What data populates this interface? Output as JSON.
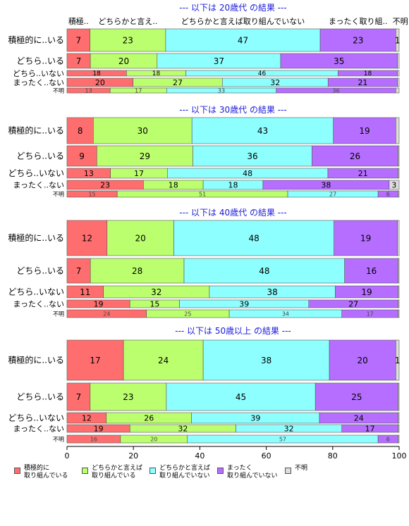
{
  "colors": [
    "#FF6E6E",
    "#BBFF6E",
    "#8EFFFF",
    "#B56EFF",
    "#DDDDDD"
  ],
  "legend": [
    "積極的に\n取り組んでいる",
    "どちらかと言えば\n取り組んでいる",
    "どちらかと言えば\n取り組んでいない",
    "まったく\n取り組んでいない",
    "不明"
  ],
  "header_labels": [
    "積極..",
    "どちらかと言え..",
    "どちらかと言えば取り組んでいない",
    "まったく取り組..",
    "不明"
  ],
  "chart_data": {
    "type": "bar",
    "orientation": "horizontal",
    "stacked": true,
    "xlim": [
      0,
      100
    ],
    "x_ticks": [
      "0",
      "20",
      "40",
      "60",
      "80",
      "100"
    ],
    "series_names": [
      "積極的に取り組んでいる",
      "どちらかと言えば取り組んでいる",
      "どちらかと言えば取り組んでいない",
      "まったく取り組んでいない",
      "不明"
    ],
    "panels": [
      {
        "title": "--- 以下は 20歳代 の結果 ---",
        "rows": [
          {
            "label": "積極的に..いる",
            "values": [
              7,
              23,
              47,
              23,
              1
            ],
            "labels": [
              "7",
              "23",
              "47",
              "23",
              "1"
            ]
          },
          {
            "label": "どちら..いる",
            "values": [
              7,
              20,
              37,
              35,
              0.5
            ],
            "labels": [
              "7",
              "20",
              "37",
              "35",
              ""
            ]
          },
          {
            "label": "どちら..いない",
            "values": [
              18,
              18,
              46,
              18,
              0.5
            ],
            "labels": [
              "18",
              "18",
              "46",
              "18",
              ""
            ]
          },
          {
            "label": "まったく..ない",
            "values": [
              20,
              27,
              32,
              21,
              0.5
            ],
            "labels": [
              "20",
              "27",
              "32",
              "21",
              ""
            ]
          },
          {
            "label": "不明",
            "values": [
              13,
              17,
              33,
              36,
              1
            ],
            "labels": [
              "13",
              "17",
              "33",
              "36",
              ""
            ]
          }
        ]
      },
      {
        "title": "--- 以下は 30歳代 の結果 ---",
        "rows": [
          {
            "label": "積極的に..いる",
            "values": [
              8,
              30,
              43,
              19,
              1
            ],
            "labels": [
              "8",
              "30",
              "43",
              "19",
              ""
            ]
          },
          {
            "label": "どちら..いる",
            "values": [
              9,
              29,
              36,
              26,
              0.3
            ],
            "labels": [
              "9",
              "29",
              "36",
              "26",
              ""
            ]
          },
          {
            "label": "どちら..いない",
            "values": [
              13,
              17,
              48,
              21,
              0.3
            ],
            "labels": [
              "13",
              "17",
              "48",
              "21",
              ""
            ]
          },
          {
            "label": "まったく..ない",
            "values": [
              23,
              18,
              18,
              38,
              3
            ],
            "labels": [
              "23",
              "18",
              "18",
              "38",
              "3"
            ]
          },
          {
            "label": "不明",
            "values": [
              15,
              51,
              27,
              6,
              0.3
            ],
            "labels": [
              "15",
              "51",
              "27",
              "6",
              ""
            ]
          }
        ]
      },
      {
        "title": "--- 以下は 40歳代 の結果 ---",
        "rows": [
          {
            "label": "積極的に..いる",
            "values": [
              12,
              20,
              48,
              19,
              0.5
            ],
            "labels": [
              "12",
              "20",
              "48",
              "19",
              ""
            ]
          },
          {
            "label": "どちら..いる",
            "values": [
              7,
              28,
              48,
              16,
              0.3
            ],
            "labels": [
              "7",
              "28",
              "48",
              "16",
              ""
            ]
          },
          {
            "label": "どちら..いない",
            "values": [
              11,
              32,
              38,
              19,
              0.3
            ],
            "labels": [
              "11",
              "32",
              "38",
              "19",
              ""
            ]
          },
          {
            "label": "まったく..ない",
            "values": [
              19,
              15,
              39,
              27,
              0.3
            ],
            "labels": [
              "19",
              "15",
              "39",
              "27",
              ""
            ]
          },
          {
            "label": "不明",
            "values": [
              24,
              25,
              34,
              17,
              0.3
            ],
            "labels": [
              "24",
              "25",
              "34",
              "17",
              ""
            ]
          }
        ]
      },
      {
        "title": "--- 以下は 50歳以上 の結果 ---",
        "rows": [
          {
            "label": "積極的に..いる",
            "values": [
              17,
              24,
              38,
              20,
              1
            ],
            "labels": [
              "17",
              "24",
              "38",
              "20",
              "1"
            ]
          },
          {
            "label": "どちら..いる",
            "values": [
              7,
              23,
              45,
              25,
              0.3
            ],
            "labels": [
              "7",
              "23",
              "45",
              "25",
              ""
            ]
          },
          {
            "label": "どちら..いない",
            "values": [
              12,
              26,
              39,
              24,
              0.3
            ],
            "labels": [
              "12",
              "26",
              "39",
              "24",
              ""
            ]
          },
          {
            "label": "まったく..ない",
            "values": [
              19,
              32,
              32,
              17,
              0.3
            ],
            "labels": [
              "19",
              "32",
              "32",
              "17",
              ""
            ]
          },
          {
            "label": "不明",
            "values": [
              16,
              20,
              57,
              6,
              0.3
            ],
            "labels": [
              "16",
              "20",
              "57",
              "6",
              ""
            ]
          }
        ]
      }
    ]
  }
}
